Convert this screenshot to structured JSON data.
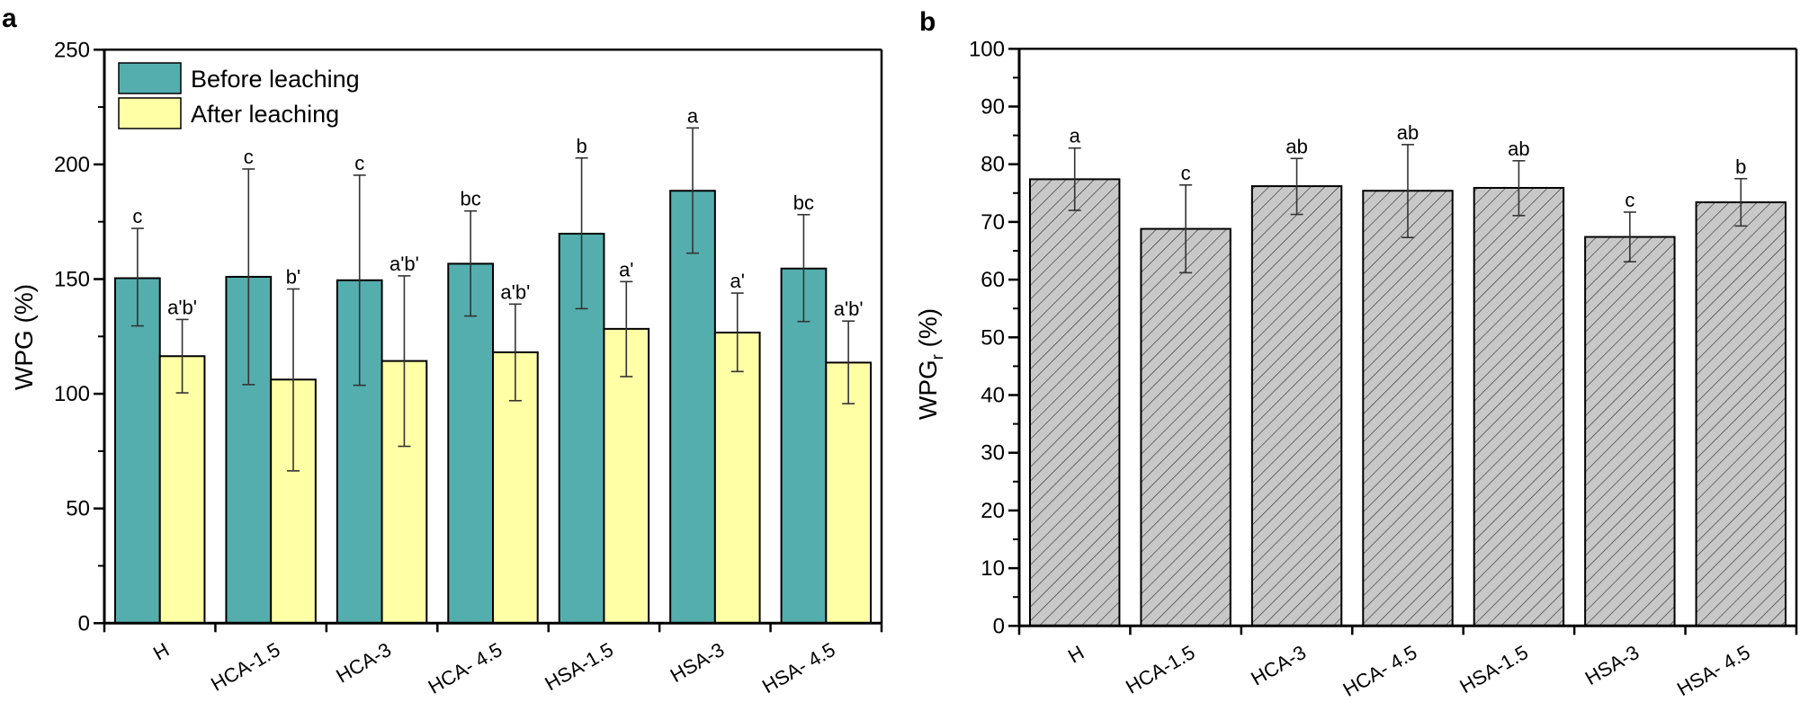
{
  "chart_data": [
    {
      "panel": "a",
      "type": "bar",
      "title": "",
      "xlabel": "",
      "ylabel": "WPG (%)",
      "ylim": [
        0,
        250
      ],
      "yticks": [
        0,
        50,
        100,
        150,
        200,
        250
      ],
      "grid": false,
      "legend_position": "top-left",
      "categories": [
        "H",
        "HCA-1.5",
        "HCA-3",
        "HCA- 4.5",
        "HSA-1.5",
        "HSA-3",
        "HSA- 4.5"
      ],
      "series": [
        {
          "name": "Before leaching",
          "color": "#55AEAE",
          "values": [
            150.4,
            151.0,
            149.5,
            156.7,
            169.8,
            188.5,
            154.6
          ],
          "error_upper": [
            172.1,
            198.0,
            195.3,
            179.7,
            202.8,
            215.9,
            178.1
          ],
          "error_lower": [
            129.6,
            104.0,
            103.7,
            133.9,
            137.1,
            161.3,
            131.5
          ],
          "significance": [
            "c",
            "c",
            "c",
            "bc",
            "b",
            "a",
            "bc"
          ]
        },
        {
          "name": "After leaching",
          "color": "#FFFFA6",
          "values": [
            116.4,
            106.2,
            114.3,
            118.1,
            128.3,
            126.7,
            113.6
          ],
          "error_upper": [
            132.4,
            145.7,
            151.4,
            139.1,
            148.9,
            143.9,
            131.7
          ],
          "error_lower": [
            100.4,
            66.4,
            77.1,
            97.0,
            107.5,
            109.7,
            95.7
          ],
          "significance": [
            "a'b'",
            "b'",
            "a'b'",
            "a'b'",
            "a'",
            "a'",
            "a'b'"
          ]
        }
      ]
    },
    {
      "panel": "b",
      "type": "bar",
      "title": "",
      "xlabel": "",
      "ylabel": "WPG",
      "ylabel_subscript": "r",
      "ylabel_suffix": " (%)",
      "ylim": [
        0,
        100
      ],
      "yticks": [
        0,
        10,
        20,
        30,
        40,
        50,
        60,
        70,
        80,
        90,
        100
      ],
      "grid": false,
      "categories": [
        "H",
        "HCA-1.5",
        "HCA-3",
        "HCA- 4.5",
        "HSA-1.5",
        "HSA-3",
        "HSA- 4.5"
      ],
      "series": [
        {
          "name": "WPGr",
          "color": "#C8C8C8",
          "pattern": "diagonal-hatch",
          "values": [
            77.4,
            68.8,
            76.2,
            75.4,
            75.9,
            67.4,
            73.4
          ],
          "error_upper": [
            82.8,
            76.4,
            81.0,
            83.4,
            80.6,
            71.7,
            77.5
          ],
          "error_lower": [
            72.0,
            61.2,
            71.3,
            67.3,
            71.1,
            63.1,
            69.3
          ],
          "significance": [
            "a",
            "c",
            "ab",
            "ab",
            "ab",
            "c",
            "b"
          ]
        }
      ]
    }
  ],
  "panels": {
    "a": {
      "letter": "a",
      "ylabel": "WPG (%)"
    },
    "b": {
      "letter": "b"
    }
  }
}
